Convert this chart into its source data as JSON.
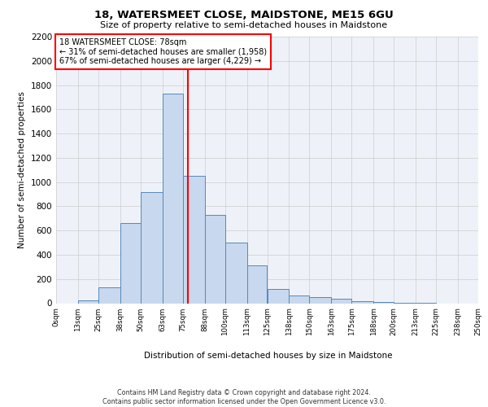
{
  "title1": "18, WATERSMEET CLOSE, MAIDSTONE, ME15 6GU",
  "title2": "Size of property relative to semi-detached houses in Maidstone",
  "xlabel": "Distribution of semi-detached houses by size in Maidstone",
  "ylabel": "Number of semi-detached properties",
  "footer1": "Contains HM Land Registry data © Crown copyright and database right 2024.",
  "footer2": "Contains public sector information licensed under the Open Government Licence v3.0.",
  "annotation_line1": "18 WATERSMEET CLOSE: 78sqm",
  "annotation_line2": "← 31% of semi-detached houses are smaller (1,958)",
  "annotation_line3": "67% of semi-detached houses are larger (4,229) →",
  "property_size": 78,
  "bin_edges": [
    0,
    13,
    25,
    38,
    50,
    63,
    75,
    88,
    100,
    113,
    125,
    138,
    150,
    163,
    175,
    188,
    200,
    213,
    225,
    238,
    250
  ],
  "bar_heights": [
    0,
    25,
    130,
    665,
    920,
    1730,
    1050,
    730,
    500,
    310,
    120,
    65,
    50,
    40,
    15,
    10,
    5,
    5,
    0,
    0
  ],
  "bar_facecolor": "#c8d8ee",
  "bar_edgecolor": "#5588bb",
  "vline_color": "red",
  "grid_color": "#cccccc",
  "background_color": "#eef2f8",
  "ylim": [
    0,
    2200
  ],
  "yticks": [
    0,
    200,
    400,
    600,
    800,
    1000,
    1200,
    1400,
    1600,
    1800,
    2000,
    2200
  ],
  "annotation_box_color": "red",
  "annotation_box_facecolor": "white"
}
